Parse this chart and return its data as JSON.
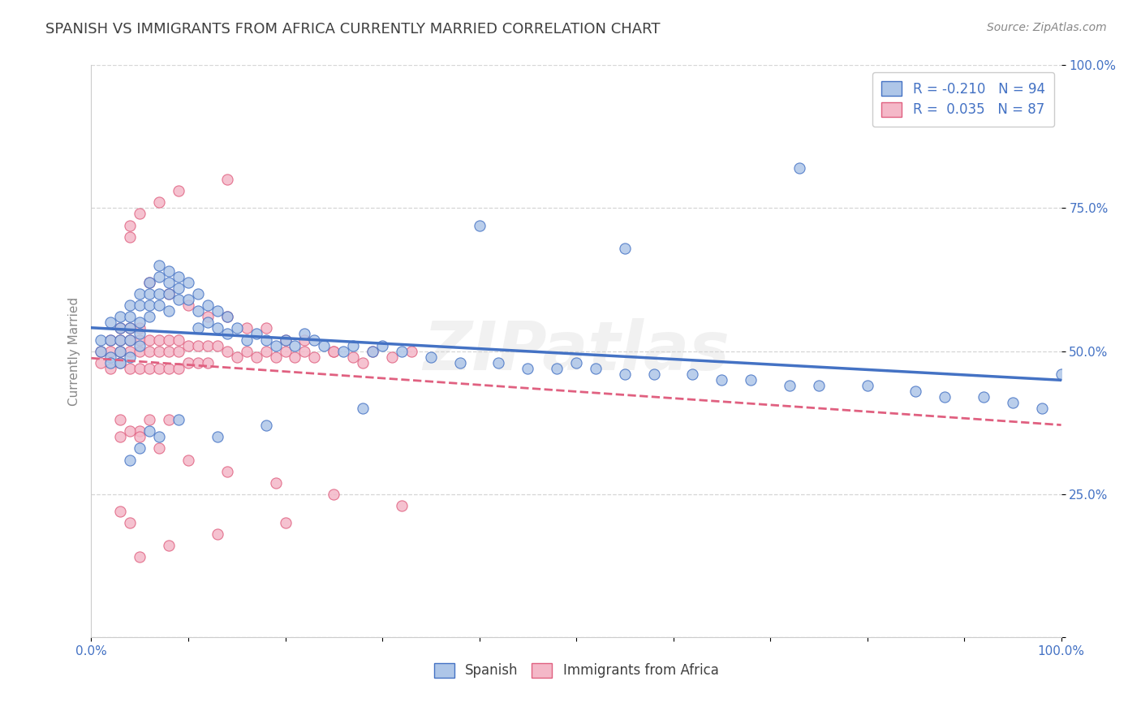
{
  "title": "SPANISH VS IMMIGRANTS FROM AFRICA CURRENTLY MARRIED CORRELATION CHART",
  "source": "Source: ZipAtlas.com",
  "ylabel": "Currently Married",
  "xlim": [
    0.0,
    1.0
  ],
  "ylim": [
    0.0,
    1.0
  ],
  "xtick_vals": [
    0.0,
    0.1,
    0.2,
    0.3,
    0.4,
    0.5,
    0.6,
    0.7,
    0.8,
    0.9,
    1.0
  ],
  "ytick_vals": [
    0.0,
    0.25,
    0.5,
    0.75,
    1.0
  ],
  "ytick_labels": [
    "",
    "25.0%",
    "50.0%",
    "75.0%",
    "100.0%"
  ],
  "xtick_labels": [
    "0.0%",
    "",
    "",
    "",
    "",
    "",
    "",
    "",
    "",
    "",
    "100.0%"
  ],
  "legend1_label": "R = -0.210   N = 94",
  "legend2_label": "R =  0.035   N = 87",
  "series1_color": "#aec6e8",
  "series2_color": "#f4b8c8",
  "trendline1_color": "#4472c4",
  "trendline2_color": "#e06080",
  "watermark": "ZIPatlas",
  "grid_color": "#cccccc",
  "background_color": "#ffffff",
  "title_color": "#404040",
  "axis_label_color": "#888888",
  "tick_label_color": "#4472c4",
  "spanish_x": [
    0.01,
    0.01,
    0.02,
    0.02,
    0.02,
    0.02,
    0.03,
    0.03,
    0.03,
    0.03,
    0.03,
    0.04,
    0.04,
    0.04,
    0.04,
    0.04,
    0.05,
    0.05,
    0.05,
    0.05,
    0.05,
    0.06,
    0.06,
    0.06,
    0.06,
    0.07,
    0.07,
    0.07,
    0.07,
    0.08,
    0.08,
    0.08,
    0.08,
    0.09,
    0.09,
    0.09,
    0.1,
    0.1,
    0.11,
    0.11,
    0.11,
    0.12,
    0.12,
    0.13,
    0.13,
    0.14,
    0.14,
    0.15,
    0.16,
    0.17,
    0.18,
    0.19,
    0.2,
    0.21,
    0.22,
    0.23,
    0.24,
    0.26,
    0.27,
    0.29,
    0.3,
    0.32,
    0.35,
    0.38,
    0.42,
    0.45,
    0.48,
    0.5,
    0.52,
    0.55,
    0.58,
    0.62,
    0.65,
    0.68,
    0.72,
    0.75,
    0.8,
    0.85,
    0.88,
    0.92,
    0.95,
    0.98,
    1.0,
    0.73,
    0.55,
    0.4,
    0.28,
    0.18,
    0.13,
    0.09,
    0.07,
    0.06,
    0.05,
    0.04
  ],
  "spanish_y": [
    0.52,
    0.5,
    0.55,
    0.52,
    0.49,
    0.48,
    0.56,
    0.54,
    0.52,
    0.5,
    0.48,
    0.58,
    0.56,
    0.54,
    0.52,
    0.49,
    0.6,
    0.58,
    0.55,
    0.53,
    0.51,
    0.62,
    0.6,
    0.58,
    0.56,
    0.65,
    0.63,
    0.6,
    0.58,
    0.64,
    0.62,
    0.6,
    0.57,
    0.63,
    0.61,
    0.59,
    0.62,
    0.59,
    0.6,
    0.57,
    0.54,
    0.58,
    0.55,
    0.57,
    0.54,
    0.56,
    0.53,
    0.54,
    0.52,
    0.53,
    0.52,
    0.51,
    0.52,
    0.51,
    0.53,
    0.52,
    0.51,
    0.5,
    0.51,
    0.5,
    0.51,
    0.5,
    0.49,
    0.48,
    0.48,
    0.47,
    0.47,
    0.48,
    0.47,
    0.46,
    0.46,
    0.46,
    0.45,
    0.45,
    0.44,
    0.44,
    0.44,
    0.43,
    0.42,
    0.42,
    0.41,
    0.4,
    0.46,
    0.82,
    0.68,
    0.72,
    0.4,
    0.37,
    0.35,
    0.38,
    0.35,
    0.36,
    0.33,
    0.31
  ],
  "africa_x": [
    0.01,
    0.01,
    0.02,
    0.02,
    0.02,
    0.03,
    0.03,
    0.03,
    0.03,
    0.04,
    0.04,
    0.04,
    0.04,
    0.05,
    0.05,
    0.05,
    0.05,
    0.06,
    0.06,
    0.06,
    0.07,
    0.07,
    0.07,
    0.08,
    0.08,
    0.08,
    0.09,
    0.09,
    0.09,
    0.1,
    0.1,
    0.11,
    0.11,
    0.12,
    0.12,
    0.13,
    0.14,
    0.15,
    0.16,
    0.17,
    0.18,
    0.19,
    0.2,
    0.21,
    0.22,
    0.23,
    0.25,
    0.27,
    0.29,
    0.31,
    0.33,
    0.08,
    0.06,
    0.05,
    0.04,
    0.03,
    0.03,
    0.06,
    0.08,
    0.1,
    0.12,
    0.14,
    0.16,
    0.18,
    0.2,
    0.22,
    0.25,
    0.28,
    0.14,
    0.09,
    0.07,
    0.05,
    0.04,
    0.04,
    0.05,
    0.07,
    0.1,
    0.14,
    0.19,
    0.25,
    0.32,
    0.2,
    0.13,
    0.08,
    0.05,
    0.04,
    0.03
  ],
  "africa_y": [
    0.5,
    0.48,
    0.52,
    0.5,
    0.47,
    0.54,
    0.52,
    0.5,
    0.48,
    0.54,
    0.52,
    0.5,
    0.47,
    0.54,
    0.52,
    0.5,
    0.47,
    0.52,
    0.5,
    0.47,
    0.52,
    0.5,
    0.47,
    0.52,
    0.5,
    0.47,
    0.52,
    0.5,
    0.47,
    0.51,
    0.48,
    0.51,
    0.48,
    0.51,
    0.48,
    0.51,
    0.5,
    0.49,
    0.5,
    0.49,
    0.5,
    0.49,
    0.5,
    0.49,
    0.5,
    0.49,
    0.5,
    0.49,
    0.5,
    0.49,
    0.5,
    0.38,
    0.38,
    0.36,
    0.36,
    0.35,
    0.38,
    0.62,
    0.6,
    0.58,
    0.56,
    0.56,
    0.54,
    0.54,
    0.52,
    0.52,
    0.5,
    0.48,
    0.8,
    0.78,
    0.76,
    0.74,
    0.72,
    0.7,
    0.35,
    0.33,
    0.31,
    0.29,
    0.27,
    0.25,
    0.23,
    0.2,
    0.18,
    0.16,
    0.14,
    0.2,
    0.22
  ]
}
